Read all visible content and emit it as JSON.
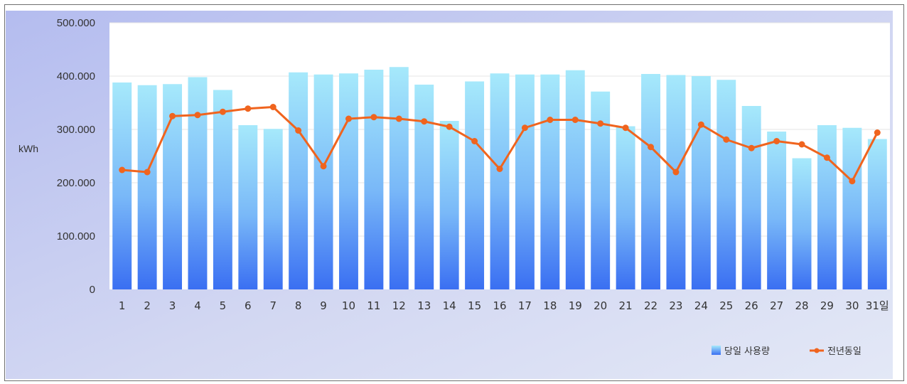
{
  "chart_data": {
    "type": "bar",
    "title": "",
    "xlabel": "",
    "ylabel": "kWh",
    "ylim": [
      0,
      500000
    ],
    "y_ticks": [
      0,
      100000,
      200000,
      300000,
      400000,
      500000
    ],
    "y_tick_labels": [
      "0",
      "100.000",
      "200.000",
      "300.000",
      "400.000",
      "500.000"
    ],
    "categories": [
      "1",
      "2",
      "3",
      "4",
      "5",
      "6",
      "7",
      "8",
      "9",
      "10",
      "11",
      "12",
      "13",
      "14",
      "15",
      "16",
      "17",
      "18",
      "19",
      "20",
      "21",
      "22",
      "23",
      "24",
      "25",
      "26",
      "27",
      "28",
      "29",
      "30",
      "31일"
    ],
    "grid": true,
    "legend_position": "bottom-right",
    "series": [
      {
        "name": "당일 사용량",
        "kind": "bar",
        "color": "#4f95f5",
        "values": [
          388000,
          383000,
          385000,
          398000,
          374000,
          308000,
          301000,
          407000,
          403000,
          405000,
          412000,
          417000,
          384000,
          316000,
          390000,
          405000,
          403000,
          403000,
          411000,
          371000,
          306000,
          404000,
          402000,
          400000,
          393000,
          344000,
          296000,
          246000,
          308000,
          303000,
          282000
        ]
      },
      {
        "name": "전년동일",
        "kind": "line",
        "color": "#f0641e",
        "values": [
          224000,
          220000,
          325000,
          327000,
          333000,
          339000,
          342000,
          298000,
          231000,
          320000,
          323000,
          320000,
          315000,
          305000,
          278000,
          226000,
          303000,
          318000,
          318000,
          311000,
          303000,
          267000,
          220000,
          309000,
          281000,
          265000,
          278000,
          272000,
          247000,
          203000,
          294000
        ]
      }
    ]
  }
}
